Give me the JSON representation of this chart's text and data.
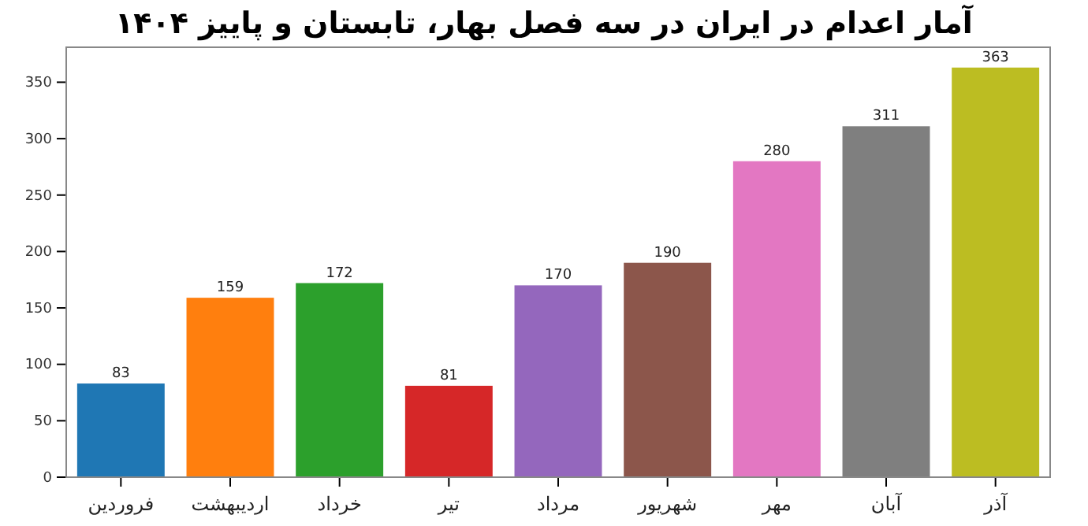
{
  "chart_data": {
    "type": "bar",
    "title": "آمار اعدام در ایران در سه فصل بهار، تابستان و پاییز ۱۴۰۴",
    "categories": [
      "فروردین",
      "اردیبهشت",
      "خرداد",
      "تیر",
      "مرداد",
      "شهریور",
      "مهر",
      "آبان",
      "آذر"
    ],
    "values": [
      83,
      159,
      172,
      81,
      170,
      190,
      280,
      311,
      363
    ],
    "colors": [
      "#1f77b4",
      "#ff7f0e",
      "#2ca02c",
      "#d62728",
      "#9467bd",
      "#8c564b",
      "#e377c2",
      "#7f7f7f",
      "#bcbd22"
    ],
    "ylim": [
      0,
      381
    ],
    "yticks": [
      0,
      50,
      100,
      150,
      200,
      250,
      300,
      350
    ],
    "data_labels": true
  }
}
